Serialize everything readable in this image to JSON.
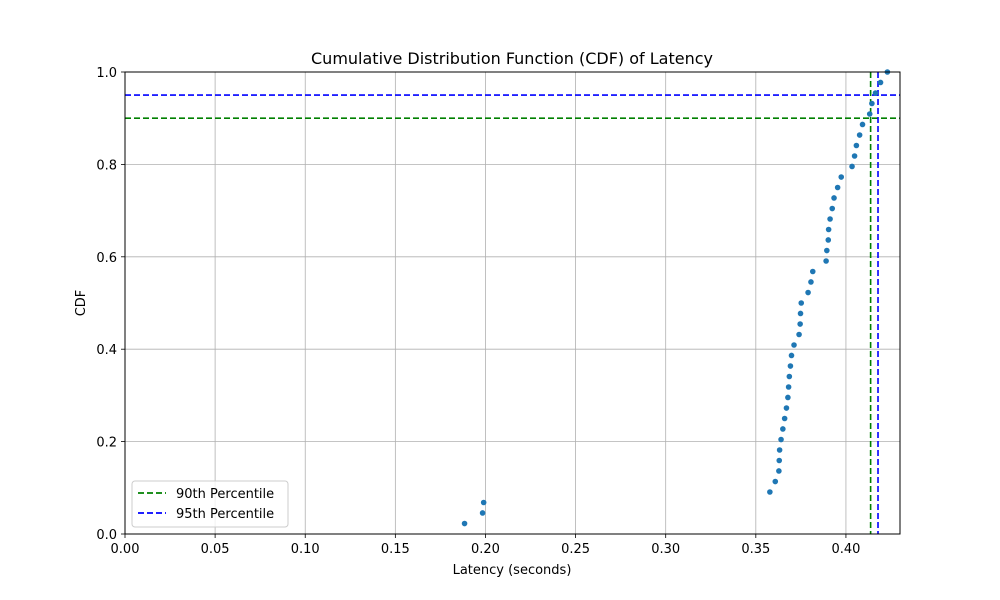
{
  "chart_data": {
    "type": "scatter",
    "title": "Cumulative Distribution Function (CDF) of Latency",
    "xlabel": "Latency (seconds)",
    "ylabel": "CDF",
    "xlim": [
      0.0,
      0.43
    ],
    "ylim": [
      0.0,
      1.0
    ],
    "xticks": [
      "0.00",
      "0.05",
      "0.10",
      "0.15",
      "0.20",
      "0.25",
      "0.30",
      "0.35",
      "0.40"
    ],
    "yticks": [
      "0.0",
      "0.2",
      "0.4",
      "0.6",
      "0.8",
      "1.0"
    ],
    "grid": true,
    "legend_position": "lower-left",
    "point_color": "#1f77b4",
    "x": [
      0.1884,
      0.1984,
      0.199,
      0.3578,
      0.3608,
      0.3628,
      0.363,
      0.3632,
      0.364,
      0.365,
      0.366,
      0.367,
      0.3678,
      0.3682,
      0.3686,
      0.3692,
      0.3698,
      0.3712,
      0.374,
      0.3746,
      0.3748,
      0.3752,
      0.379,
      0.3806,
      0.3816,
      0.389,
      0.3894,
      0.3902,
      0.3904,
      0.3912,
      0.3924,
      0.3934,
      0.3954,
      0.3974,
      0.4034,
      0.4048,
      0.4058,
      0.4076,
      0.4092,
      0.4132,
      0.4144,
      0.4164,
      0.4192,
      0.423
    ],
    "y": [
      0.0227,
      0.0455,
      0.0682,
      0.0909,
      0.1136,
      0.1364,
      0.1591,
      0.1818,
      0.2045,
      0.2273,
      0.25,
      0.2727,
      0.2955,
      0.3182,
      0.3409,
      0.3636,
      0.3864,
      0.4091,
      0.4318,
      0.4545,
      0.4773,
      0.5,
      0.5227,
      0.5455,
      0.5682,
      0.5909,
      0.6136,
      0.6364,
      0.6591,
      0.6818,
      0.7045,
      0.7273,
      0.75,
      0.7727,
      0.7955,
      0.8182,
      0.8409,
      0.8636,
      0.8864,
      0.9091,
      0.9318,
      0.9545,
      0.9773,
      1.0
    ],
    "reference_lines": [
      {
        "name": "90th Percentile",
        "x": 0.4137,
        "y": 0.9,
        "color": "#008000"
      },
      {
        "name": "95th Percentile",
        "x": 0.4178,
        "y": 0.95,
        "color": "#0000ff"
      }
    ],
    "legend": [
      "90th Percentile",
      "95th Percentile"
    ]
  }
}
